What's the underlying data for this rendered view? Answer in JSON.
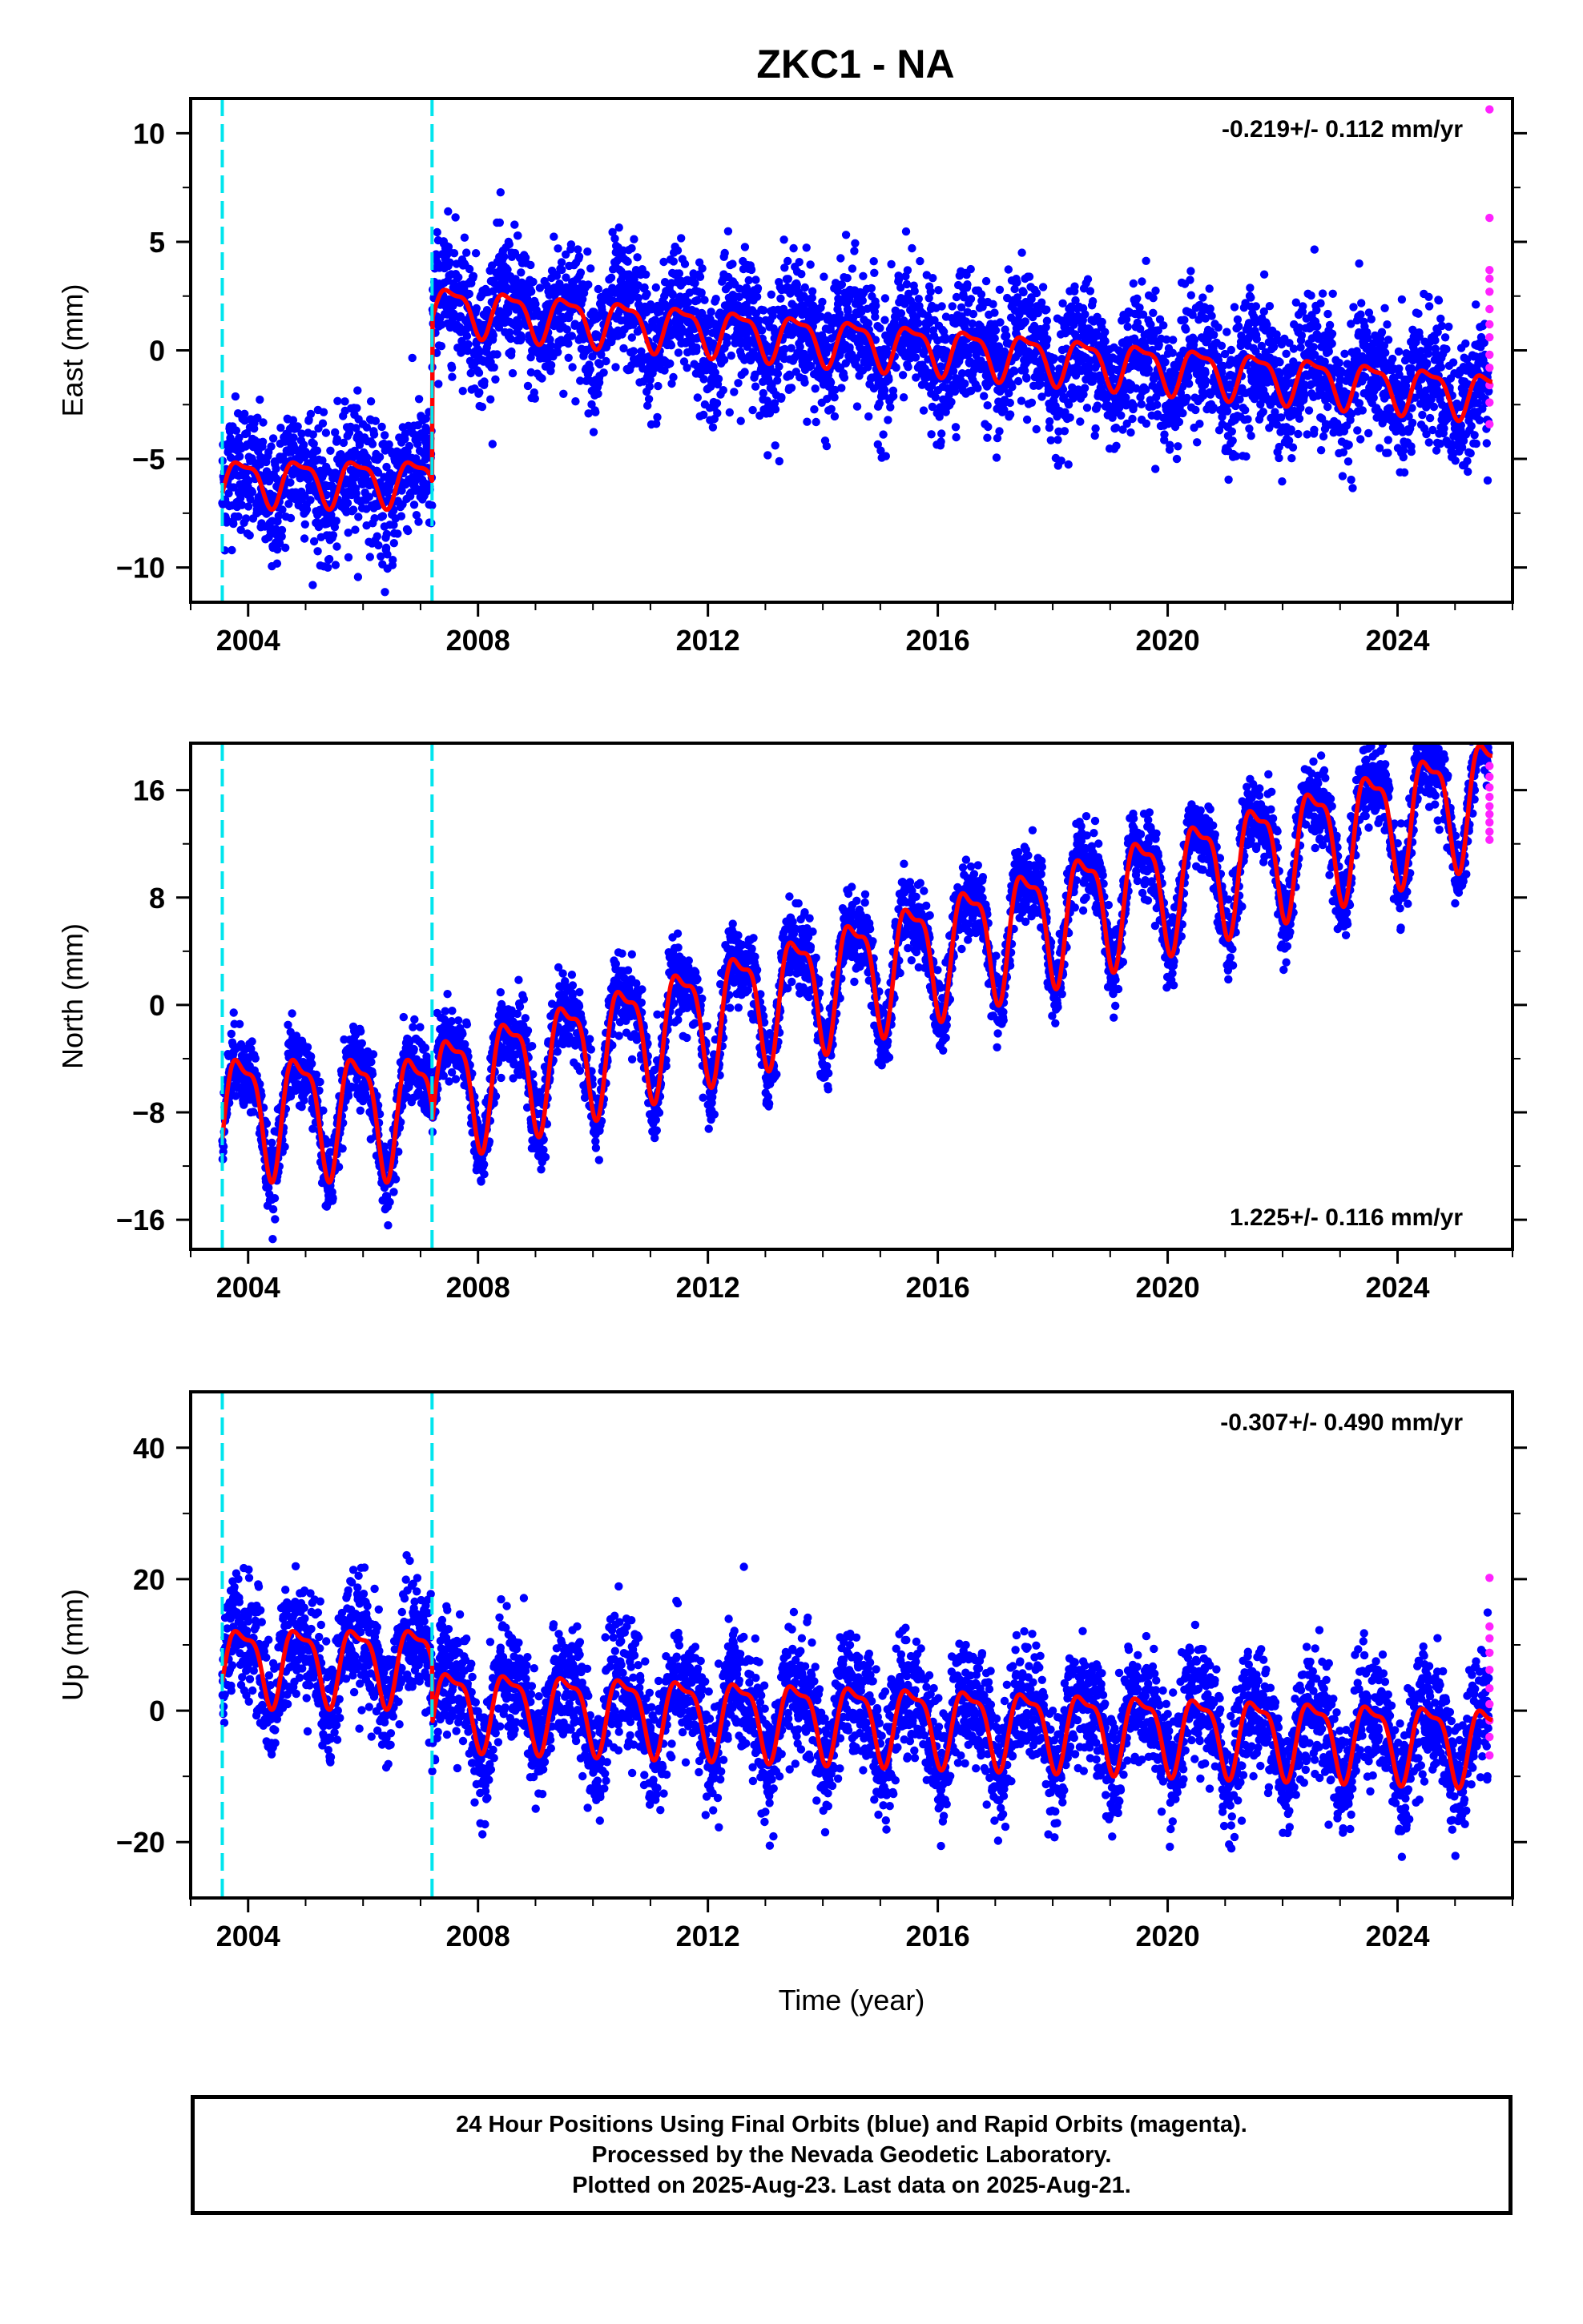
{
  "title": "ZKC1 - NA",
  "colors": {
    "final": "#0000ff",
    "rapid": "#ff22ff",
    "model": "#ff0000",
    "offset": "#00e5ee"
  },
  "footer": {
    "line1": "24 Hour Positions Using Final Orbits (blue) and Rapid Orbits (magenta).",
    "line2": "Processed by the Nevada Geodetic Laboratory.",
    "line3": "Plotted on 2025-Aug-23. Last data on 2025-Aug-21."
  },
  "chart_data": [
    {
      "type": "scatter",
      "ylabel": "East (mm)",
      "xlabel": "",
      "xlim": [
        2003.0,
        2026.0
      ],
      "ylim": [
        -11.6,
        11.6
      ],
      "yticks": [
        -10,
        -5,
        0,
        5,
        10
      ],
      "xticks": [
        2004,
        2008,
        2012,
        2016,
        2020,
        2024
      ],
      "rate": "-0.219+/- 0.112 mm/yr",
      "rate_position": "top-right",
      "offsets": [
        2003.55,
        2007.2
      ],
      "model_segments": [
        {
          "start": 2003.55,
          "end": 2007.2,
          "level": -6.0,
          "trend": 0.0,
          "amplitude": 1.0
        },
        {
          "start": 2007.2,
          "end": 2025.65,
          "level": 2.0,
          "trend": -0.219,
          "amplitude": 1.0
        }
      ],
      "scatter_spread": 1.5,
      "rapid": {
        "x": 2025.6,
        "y": [
          11.1,
          6.1,
          3.7,
          3.3,
          2.7,
          1.9,
          1.2,
          0.6,
          -0.2,
          -0.8,
          -1.6,
          -2.4,
          -3.4
        ]
      }
    },
    {
      "type": "scatter",
      "ylabel": "North (mm)",
      "xlabel": "",
      "xlim": [
        2003.0,
        2026.0
      ],
      "ylim": [
        -18.2,
        19.5
      ],
      "yticks": [
        -16,
        -8,
        0,
        8,
        16
      ],
      "xticks": [
        2004,
        2008,
        2012,
        2016,
        2020,
        2024
      ],
      "rate": "1.225+/- 0.116 mm/yr",
      "rate_position": "bottom-right",
      "offsets": [
        2003.55,
        2007.2
      ],
      "model_segments": [
        {
          "start": 2003.55,
          "end": 2007.2,
          "level": -7.6,
          "trend": 0.0,
          "amplitude": 4.2
        },
        {
          "start": 2007.2,
          "end": 2025.65,
          "level": -6.5,
          "trend": 1.225,
          "amplitude": 4.2
        }
      ],
      "scatter_spread": 1.4,
      "rapid": {
        "x": 2025.6,
        "y": [
          17.8,
          17.0,
          16.2,
          15.5,
          14.8,
          14.2,
          13.6,
          12.9,
          12.3
        ]
      }
    },
    {
      "type": "scatter",
      "ylabel": "Up (mm)",
      "xlabel": "Time (year)",
      "xlim": [
        2003.0,
        2026.0
      ],
      "ylim": [
        -28.5,
        48.5
      ],
      "yticks": [
        -20,
        0,
        20,
        40
      ],
      "xticks": [
        2004,
        2008,
        2012,
        2016,
        2020,
        2024
      ],
      "rate": "-0.307+/- 0.490 mm/yr",
      "rate_position": "top-right",
      "offsets": [
        2003.55,
        2007.2
      ],
      "model_segments": [
        {
          "start": 2003.55,
          "end": 2007.2,
          "level": 7.5,
          "trend": 0.0,
          "amplitude": 5.5
        },
        {
          "start": 2007.2,
          "end": 2025.65,
          "level": 1.0,
          "trend": -0.307,
          "amplitude": 5.5
        }
      ],
      "scatter_spread": 4.5,
      "rapid": {
        "x": 2025.6,
        "y": [
          20.2,
          12.8,
          11.0,
          8.8,
          6.2,
          3.4,
          1.0,
          -1.5,
          -4.0,
          -6.8
        ]
      }
    }
  ]
}
